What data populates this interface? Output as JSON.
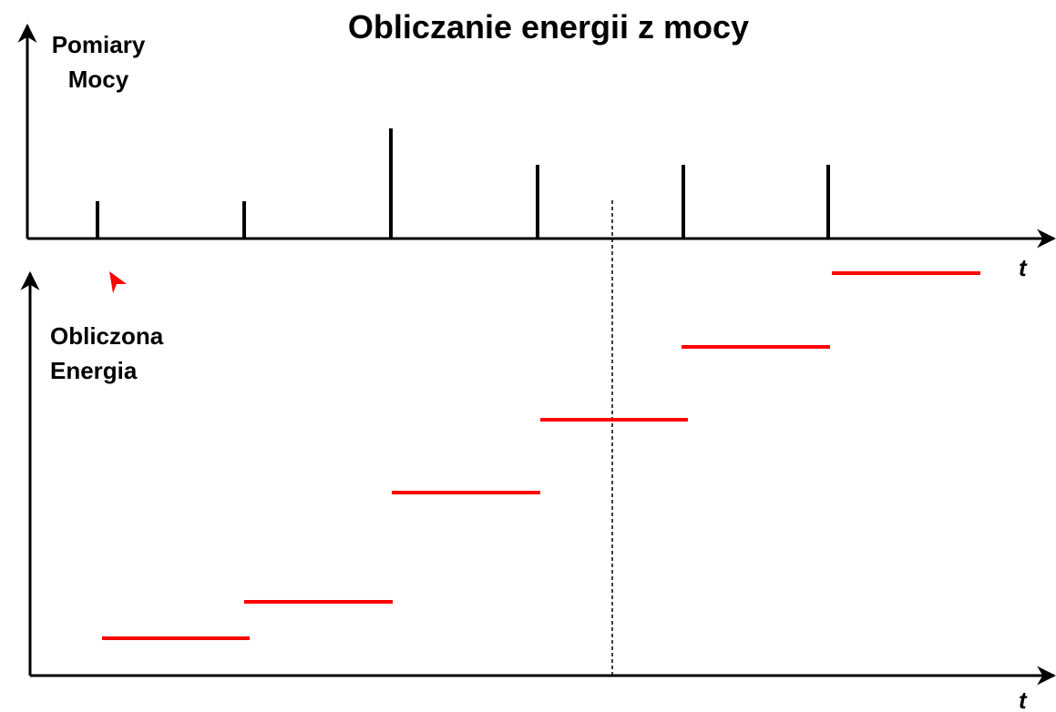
{
  "title": "Obliczanie energii z mocy",
  "top_panel": {
    "y_label": [
      "Pomiary",
      "Mocy"
    ],
    "x_label": "t"
  },
  "bottom_panel": {
    "y_label": [
      "Obliczona",
      "Energia"
    ],
    "x_label": "t"
  }
}
